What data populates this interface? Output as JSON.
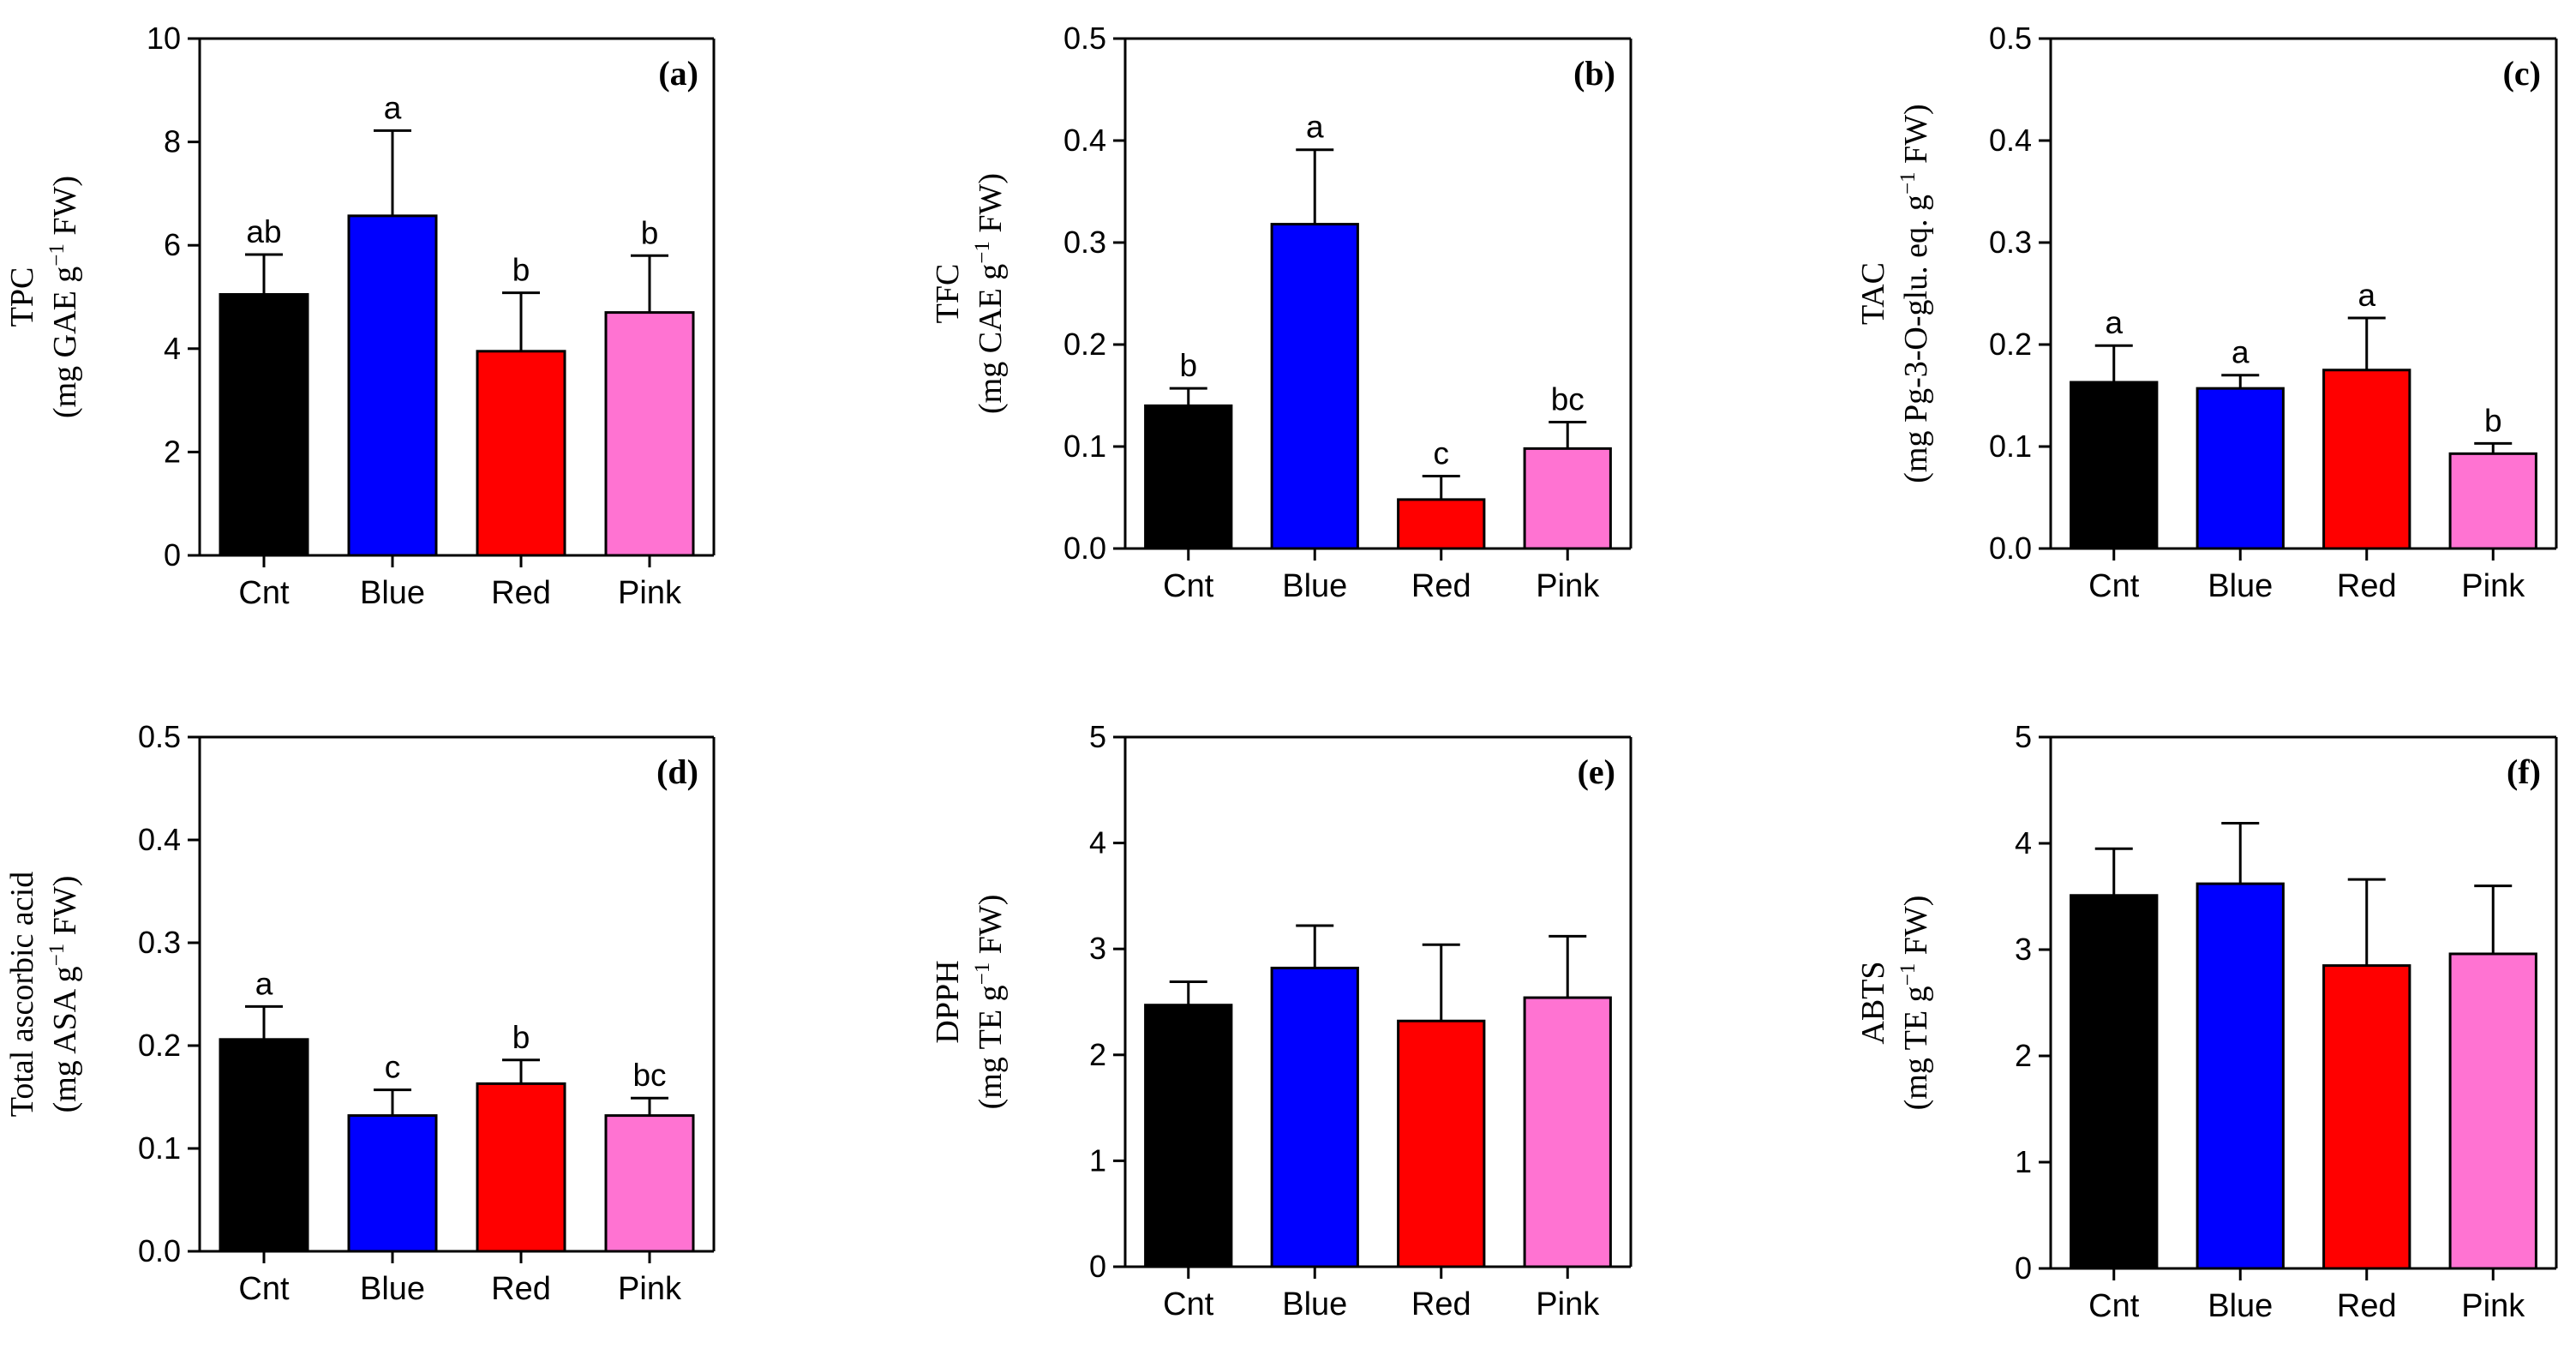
{
  "colors": {
    "Cnt": "#000000",
    "Blue": "#0000ff",
    "Red": "#ff0000",
    "Pink": "#ff73d2"
  },
  "chart_data": [
    {
      "type": "bar",
      "panel": "(a)",
      "categories": [
        "Cnt",
        "Blue",
        "Red",
        "Pink"
      ],
      "values": [
        5.05,
        6.57,
        3.95,
        4.7
      ],
      "errors": [
        0.77,
        1.65,
        1.13,
        1.1
      ],
      "letters": [
        "ab",
        "a",
        "b",
        "b"
      ],
      "ylabel_line1": "TPC",
      "ylabel_line2_pre": "(mg GAE g",
      "ylabel_line2_sup": "−1",
      "ylabel_line2_post": " FW)",
      "ylim": [
        0,
        10
      ],
      "yticks": [
        0,
        2,
        4,
        6,
        8,
        10
      ],
      "ytick_labels": [
        "0",
        "2",
        "4",
        "6",
        "8",
        "10"
      ]
    },
    {
      "type": "bar",
      "panel": "(b)",
      "categories": [
        "Cnt",
        "Blue",
        "Red",
        "Pink"
      ],
      "values": [
        0.14,
        0.318,
        0.048,
        0.098
      ],
      "errors": [
        0.017,
        0.073,
        0.023,
        0.026
      ],
      "letters": [
        "b",
        "a",
        "c",
        "bc"
      ],
      "ylabel_line1": "TFC",
      "ylabel_line2_pre": "(mg CAE g",
      "ylabel_line2_sup": "−1",
      "ylabel_line2_post": " FW)",
      "ylim": [
        0,
        0.5
      ],
      "yticks": [
        0,
        0.1,
        0.2,
        0.3,
        0.4,
        0.5
      ],
      "ytick_labels": [
        "0.0",
        "0.1",
        "0.2",
        "0.3",
        "0.4",
        "0.5"
      ]
    },
    {
      "type": "bar",
      "panel": "(c)",
      "categories": [
        "Cnt",
        "Blue",
        "Red",
        "Pink"
      ],
      "values": [
        0.163,
        0.157,
        0.175,
        0.093
      ],
      "errors": [
        0.036,
        0.013,
        0.051,
        0.01
      ],
      "letters": [
        "a",
        "a",
        "a",
        "b"
      ],
      "ylabel_line1": "TAC",
      "ylabel_line2_pre": "(mg Pg-3-O-glu. eq. g",
      "ylabel_line2_sup": "−1",
      "ylabel_line2_post": " FW)",
      "ylim": [
        0,
        0.5
      ],
      "yticks": [
        0,
        0.1,
        0.2,
        0.3,
        0.4,
        0.5
      ],
      "ytick_labels": [
        "0.0",
        "0.1",
        "0.2",
        "0.3",
        "0.4",
        "0.5"
      ]
    },
    {
      "type": "bar",
      "panel": "(d)",
      "categories": [
        "Cnt",
        "Blue",
        "Red",
        "Pink"
      ],
      "values": [
        0.206,
        0.132,
        0.163,
        0.132
      ],
      "errors": [
        0.032,
        0.025,
        0.023,
        0.017
      ],
      "letters": [
        "a",
        "c",
        "b",
        "bc"
      ],
      "ylabel_line1": "Total ascorbic acid",
      "ylabel_line2_pre": "(mg ASA g",
      "ylabel_line2_sup": "−1",
      "ylabel_line2_post": " FW)",
      "ylim": [
        0,
        0.5
      ],
      "yticks": [
        0,
        0.1,
        0.2,
        0.3,
        0.4,
        0.5
      ],
      "ytick_labels": [
        "0.0",
        "0.1",
        "0.2",
        "0.3",
        "0.4",
        "0.5"
      ]
    },
    {
      "type": "bar",
      "panel": "(e)",
      "categories": [
        "Cnt",
        "Blue",
        "Red",
        "Pink"
      ],
      "values": [
        2.47,
        2.82,
        2.32,
        2.54
      ],
      "errors": [
        0.22,
        0.4,
        0.72,
        0.58
      ],
      "letters": [
        "",
        "",
        "",
        ""
      ],
      "ylabel_line1": "DPPH",
      "ylabel_line2_pre": "(mg TE g",
      "ylabel_line2_sup": "−1",
      "ylabel_line2_post": " FW)",
      "ylim": [
        0,
        5
      ],
      "yticks": [
        0,
        1,
        2,
        3,
        4,
        5
      ],
      "ytick_labels": [
        "0",
        "1",
        "2",
        "3",
        "4",
        "5"
      ]
    },
    {
      "type": "bar",
      "panel": "(f)",
      "categories": [
        "Cnt",
        "Blue",
        "Red",
        "Pink"
      ],
      "values": [
        3.51,
        3.62,
        2.85,
        2.96
      ],
      "errors": [
        0.44,
        0.57,
        0.81,
        0.64
      ],
      "letters": [
        "",
        "",
        "",
        ""
      ],
      "ylabel_line1": "ABTS",
      "ylabel_line2_pre": "(mg TE g",
      "ylabel_line2_sup": "−1",
      "ylabel_line2_post": " FW)",
      "ylim": [
        0,
        5
      ],
      "yticks": [
        0,
        1,
        2,
        3,
        4,
        5
      ],
      "ytick_labels": [
        "0",
        "1",
        "2",
        "3",
        "4",
        "5"
      ]
    }
  ]
}
